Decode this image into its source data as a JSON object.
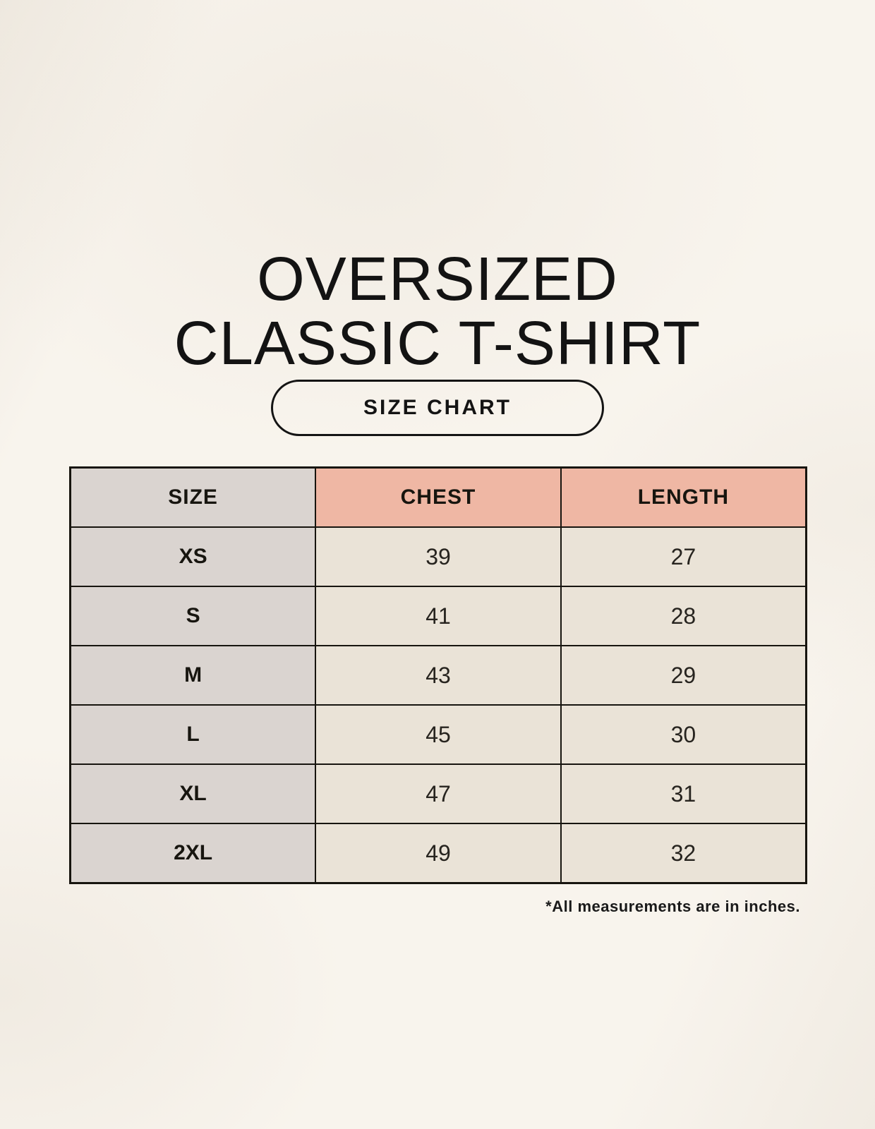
{
  "page_title": {
    "line1": "OVERSIZED",
    "line2": "CLASSIC T-SHIRT"
  },
  "size_chart_button": {
    "label": "SIZE CHART"
  },
  "table": {
    "columns": [
      "SIZE",
      "CHEST",
      "LENGTH"
    ],
    "rows": [
      {
        "size": "XS",
        "chest": "39",
        "length": "27"
      },
      {
        "size": "S",
        "chest": "41",
        "length": "28"
      },
      {
        "size": "M",
        "chest": "43",
        "length": "29"
      },
      {
        "size": "L",
        "chest": "45",
        "length": "30"
      },
      {
        "size": "XL",
        "chest": "47",
        "length": "31"
      },
      {
        "size": "2XL",
        "chest": "49",
        "length": "32"
      }
    ]
  },
  "footnote": "*All measurements are in inches.",
  "colors": {
    "background": "#f8f4ed",
    "text": "#161616",
    "size_column_bg": "#dad4d0",
    "header_pink_bg": "#efb7a4",
    "value_cell_bg": "#eae3d7",
    "table_border": "#17150f"
  },
  "chart_data": {
    "type": "table",
    "title": "OVERSIZED CLASSIC T-SHIRT",
    "columns": [
      "SIZE",
      "CHEST",
      "LENGTH"
    ],
    "rows": [
      [
        "XS",
        39,
        27
      ],
      [
        "S",
        41,
        28
      ],
      [
        "M",
        43,
        29
      ],
      [
        "L",
        45,
        30
      ],
      [
        "XL",
        47,
        31
      ],
      [
        "2XL",
        49,
        32
      ]
    ],
    "units": "inches"
  }
}
